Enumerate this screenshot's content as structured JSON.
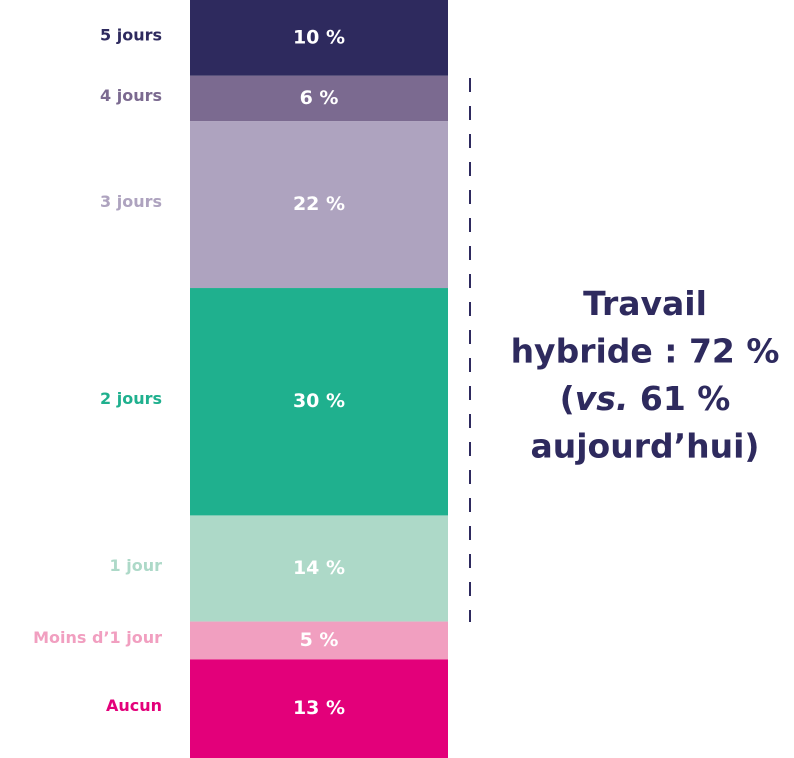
{
  "chart_data": {
    "type": "stacked-bar",
    "categories": [
      "5 jours",
      "4 jours",
      "3 jours",
      "2 jours",
      "1 jour",
      "Moins d’1 jour",
      "Aucun"
    ],
    "values": [
      10,
      6,
      22,
      30,
      14,
      5,
      13
    ],
    "value_labels": [
      "10 %",
      "6 %",
      "22 %",
      "30 %",
      "14 %",
      "5 %",
      "13 %"
    ],
    "colors": [
      "#2e2a5e",
      "#7b6a90",
      "#aea3bf",
      "#1fb08e",
      "#add9c8",
      "#f19fc0",
      "#e3007a"
    ],
    "annotation": [
      [
        "Travail"
      ],
      [
        "hybride : 72 %"
      ],
      [
        "(",
        "vs.",
        " 61 %"
      ],
      [
        "aujourd’hui)"
      ]
    ]
  }
}
